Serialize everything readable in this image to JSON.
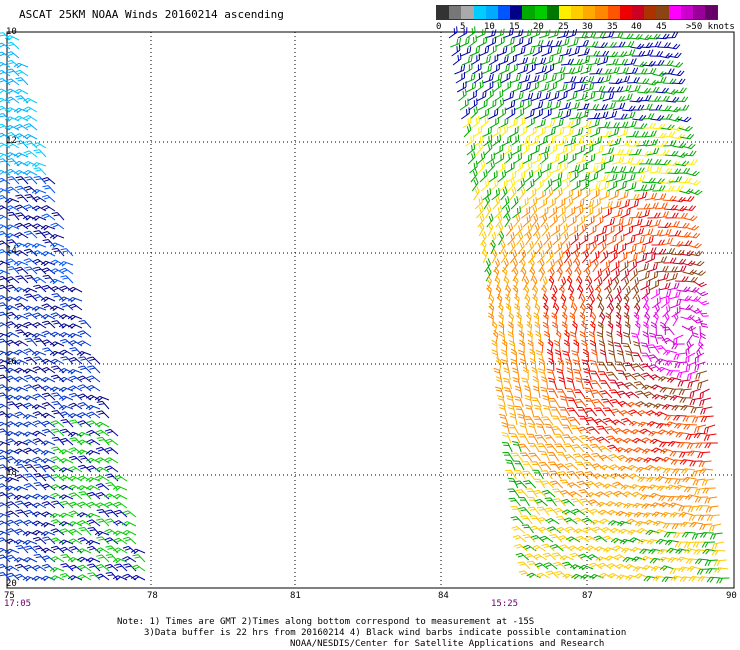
{
  "title": "ASCAT 25KM NOAA Winds 20160214 ascending",
  "legend": {
    "colors": [
      "#333333",
      "#777777",
      "#aaaaaa",
      "#00ccff",
      "#00aaff",
      "#0055ff",
      "#00008b",
      "#00aa00",
      "#00cc00",
      "#007700",
      "#ffee00",
      "#ffcc00",
      "#ffaa00",
      "#ff8800",
      "#ff5500",
      "#ee0000",
      "#cc0022",
      "#aa3300",
      "#8b4513",
      "#ff00ff",
      "#cc00cc",
      "#990099",
      "#660066"
    ],
    "labels": [
      "0",
      "5",
      "10",
      "15",
      "20",
      "25",
      "30",
      "35",
      "40",
      "45",
      ">50 knots"
    ]
  },
  "axes": {
    "lon_ticks": [
      "75",
      "78",
      "81",
      "84",
      "87",
      "90"
    ],
    "lat_ticks": [
      "10",
      "12",
      "14",
      "16",
      "18",
      "20"
    ]
  },
  "swath_times": [
    "17:05",
    "15:25"
  ],
  "notes": {
    "line1": "Note: 1) Times are GMT 2)Times along bottom correspond to measurement at -15S",
    "line2": "3)Data buffer is 22 hrs from 20160214 4) Black wind barbs indicate possible contamination",
    "line3": "NOAA/NESDIS/Center for Satellite Applications and Research"
  }
}
